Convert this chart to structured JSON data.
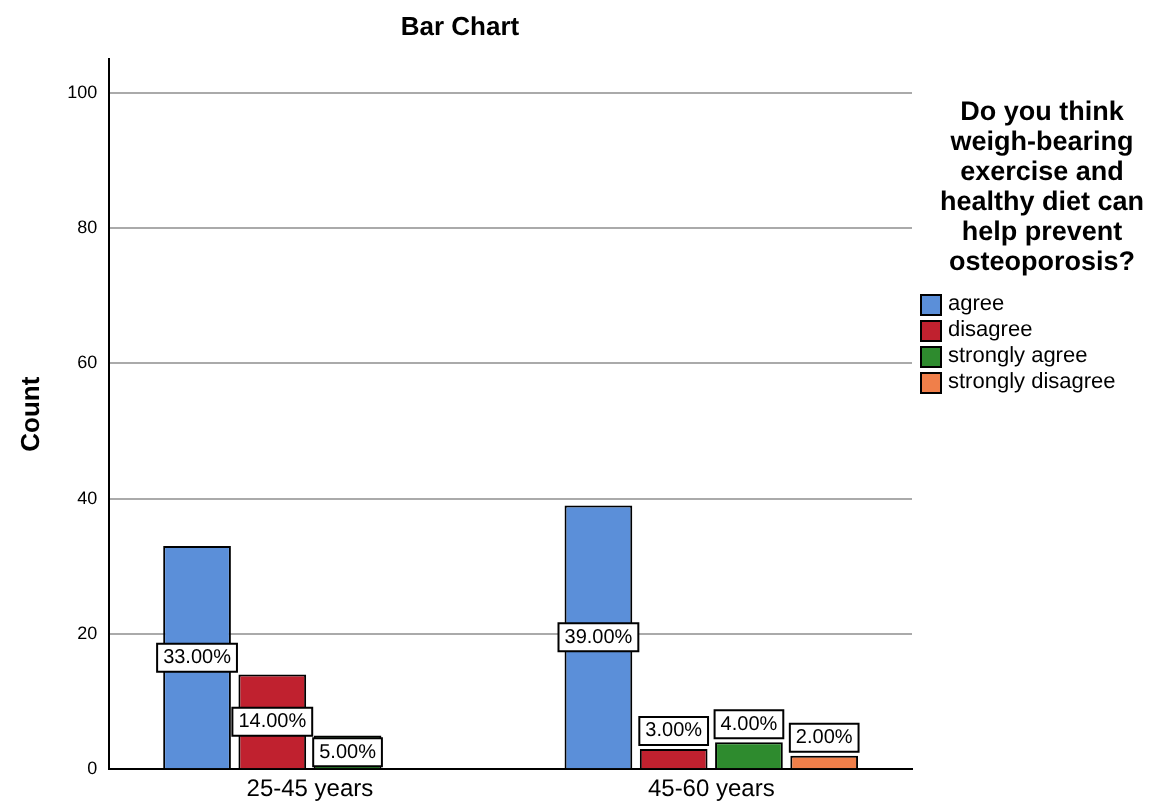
{
  "chart_data": {
    "type": "bar",
    "title": "Bar Chart",
    "ylabel": "Count",
    "legend_title": "Do you think weigh-bearing exercise and healthy diet can help prevent osteoporosis?",
    "categories": [
      "25-45 years",
      "45-60 years"
    ],
    "series": [
      {
        "name": "agree",
        "color": "#5b8fd9",
        "values": [
          33,
          39
        ],
        "value_labels": [
          "33.00%",
          "39.00%"
        ]
      },
      {
        "name": "disagree",
        "color": "#c0212f",
        "values": [
          14,
          3
        ],
        "value_labels": [
          "14.00%",
          "3.00%"
        ]
      },
      {
        "name": "strongly agree",
        "color": "#2e8b2e",
        "values": [
          5,
          4
        ],
        "value_labels": [
          "5.00%",
          "4.00%"
        ]
      },
      {
        "name": "strongly disagree",
        "color": "#f07f4a",
        "values": [
          null,
          2
        ],
        "value_labels": [
          null,
          "2.00%"
        ]
      }
    ],
    "ylim": [
      0,
      105
    ],
    "yticks": [
      0,
      20,
      40,
      60,
      80,
      100
    ],
    "grid": "y",
    "legend": "right"
  }
}
